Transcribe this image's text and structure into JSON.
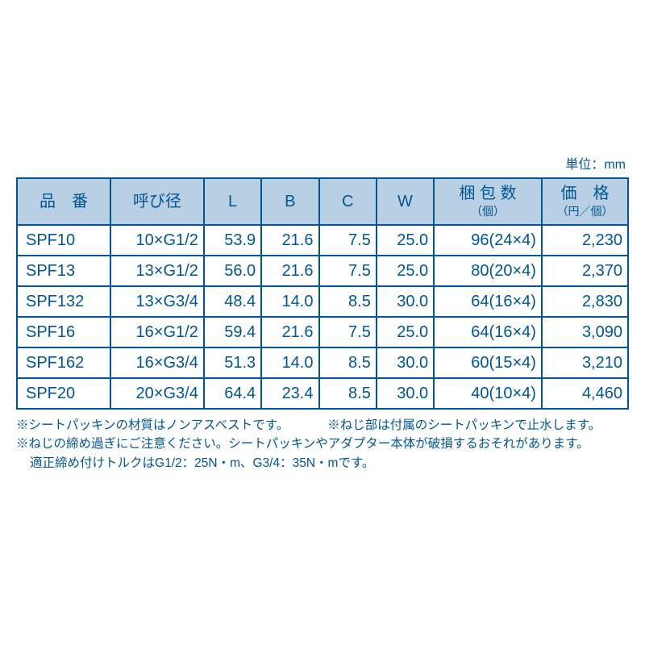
{
  "unit_label": "単位：mm",
  "table": {
    "header_bg": "#b9d0e4",
    "border_color": "#005594",
    "text_color": "#005594",
    "columns": [
      {
        "label": "品　番",
        "sub": "",
        "width": "13%"
      },
      {
        "label": "呼び径",
        "sub": "",
        "width": "13%"
      },
      {
        "label": "L",
        "sub": "",
        "width": "8%"
      },
      {
        "label": "B",
        "sub": "",
        "width": "8%"
      },
      {
        "label": "C",
        "sub": "",
        "width": "8%"
      },
      {
        "label": "W",
        "sub": "",
        "width": "8%"
      },
      {
        "label": "梱 包 数",
        "sub": "（個）",
        "width": "15%"
      },
      {
        "label": "価　格",
        "sub": "（円／個）",
        "width": "12%"
      }
    ],
    "rows": [
      [
        "SPF10",
        "10×G1/2",
        "53.9",
        "21.6",
        "7.5",
        "25.0",
        "96(24×4)",
        "2,230"
      ],
      [
        "SPF13",
        "13×G1/2",
        "56.0",
        "21.6",
        "7.5",
        "25.0",
        "80(20×4)",
        "2,370"
      ],
      [
        "SPF132",
        "13×G3/4",
        "48.4",
        "14.0",
        "8.5",
        "30.0",
        "64(16×4)",
        "2,830"
      ],
      [
        "SPF16",
        "16×G1/2",
        "59.4",
        "21.6",
        "7.5",
        "25.0",
        "64(16×4)",
        "3,090"
      ],
      [
        "SPF162",
        "16×G3/4",
        "51.3",
        "14.0",
        "8.5",
        "30.0",
        "60(15×4)",
        "3,210"
      ],
      [
        "SPF20",
        "20×G3/4",
        "64.4",
        "23.4",
        "8.5",
        "30.0",
        "40(10×4)",
        "4,460"
      ]
    ]
  },
  "notes": {
    "line1a": "※シートパッキンの材質はノンアスベストです。",
    "line1b": "※ねじ部は付属のシートパッキンで止水します。",
    "line2": "※ねじの締め過ぎにご注意ください。シートパッキンやアダプター本体が破損するおそれがあります。",
    "line3": "適正締め付けトルクはG1/2：25N・m、G3/4：35N・mです。"
  }
}
